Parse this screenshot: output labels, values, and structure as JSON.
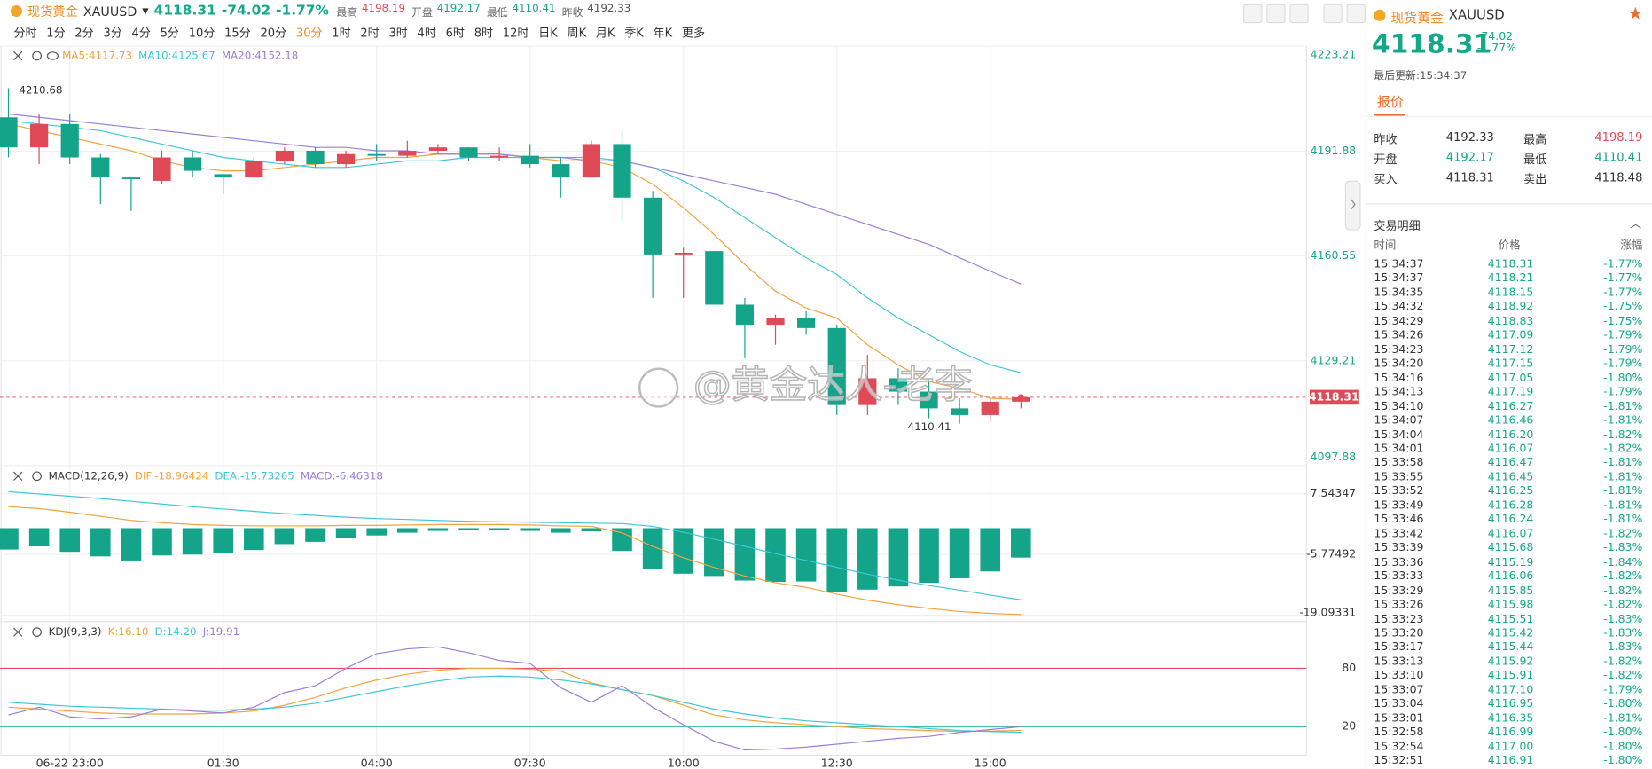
{
  "header": {
    "name": "现货黄金",
    "symbol": "XAUUSD",
    "price": "4118.31",
    "change": "-74.02",
    "change_pct": "-1.77%",
    "stats": [
      {
        "label": "最高",
        "value": "4198.19",
        "color": "#e04a57"
      },
      {
        "label": "开盘",
        "value": "4192.17",
        "color": "#13a88a"
      },
      {
        "label": "最低",
        "value": "4110.41",
        "color": "#13a88a"
      },
      {
        "label": "昨收",
        "value": "4192.33",
        "color": "#555555"
      }
    ]
  },
  "timeframes": {
    "items": [
      "分时",
      "1分",
      "2分",
      "3分",
      "4分",
      "5分",
      "10分",
      "15分",
      "20分",
      "30分",
      "1时",
      "2时",
      "3时",
      "4时",
      "6时",
      "8时",
      "12时",
      "日K",
      "周K",
      "月K",
      "季K",
      "年K",
      "更多"
    ],
    "active": 9
  },
  "watermark": "@黄金达人-老李",
  "chart_data": [
    {
      "type": "candlestick",
      "up_color": "#e04a57",
      "down_color": "#14a48a",
      "categories": [
        null,
        null,
        "06-22 23:00",
        null,
        null,
        null,
        null,
        "01:30",
        null,
        null,
        null,
        null,
        "04:00",
        null,
        null,
        null,
        null,
        "07:30",
        null,
        null,
        null,
        null,
        "10:00",
        null,
        null,
        null,
        null,
        "12:30",
        null,
        null,
        null,
        null,
        "15:00",
        null
      ],
      "open": [
        4202,
        4193,
        4200,
        4190,
        4184,
        4183,
        4190,
        4185,
        4184,
        4189,
        4192,
        4188,
        4191,
        4190.5,
        4192,
        4193,
        4190,
        4190.5,
        4188,
        4184,
        4194,
        4178,
        4161,
        4162,
        4146,
        4140,
        4142,
        4139,
        4116,
        4124,
        4120,
        4115,
        4113,
        4117
      ],
      "high": [
        4210.68,
        4203,
        4203,
        4191,
        4184,
        4192,
        4192,
        4185,
        4190,
        4193,
        4193,
        4192,
        4194,
        4195,
        4194,
        4193,
        4193,
        4194,
        4190,
        4195,
        4198.19,
        4180,
        4163,
        4162,
        4148,
        4143,
        4144,
        4140,
        4131,
        4127,
        4124,
        4118,
        4118,
        4119
      ],
      "low": [
        4190,
        4188,
        4188,
        4176,
        4174,
        4182,
        4184,
        4179,
        4184,
        4188,
        4187,
        4187,
        4189,
        4190,
        4191,
        4189,
        4189,
        4187,
        4178,
        4184,
        4171,
        4148,
        4148,
        4146,
        4130,
        4134,
        4137,
        4113,
        4113,
        4116,
        4112,
        4110.41,
        4111,
        4115
      ],
      "close": [
        4193,
        4200,
        4190,
        4184,
        4183.5,
        4190,
        4186,
        4184,
        4189,
        4192,
        4188,
        4191,
        4190.5,
        4192,
        4193,
        4190,
        4190.5,
        4188,
        4184,
        4194,
        4178,
        4161,
        4161.5,
        4146,
        4140,
        4142,
        4139,
        4116,
        4124,
        4120,
        4115,
        4113,
        4117,
        4118.31
      ],
      "series": [
        {
          "name": "MA5:4117.73",
          "color": "#f5a13f",
          "values": [
            4200,
            4198,
            4196,
            4194,
            4192,
            4189,
            4187,
            4186,
            4186,
            4187,
            4188,
            4189,
            4190,
            4190,
            4191,
            4191,
            4191,
            4190,
            4189,
            4189,
            4187,
            4182,
            4175,
            4167,
            4158,
            4150,
            4145,
            4142,
            4134,
            4128,
            4123,
            4121,
            4118,
            4117.73
          ]
        },
        {
          "name": "MA10:4125.67",
          "color": "#3ec6d8",
          "values": [
            4201,
            4200,
            4199,
            4198,
            4196,
            4194,
            4192,
            4190,
            4189,
            4188,
            4187,
            4187,
            4188,
            4189,
            4189,
            4190,
            4190,
            4190,
            4190,
            4190,
            4189,
            4187,
            4183,
            4178,
            4172,
            4166,
            4160,
            4155,
            4148,
            4142,
            4137,
            4132,
            4128,
            4125.67
          ]
        },
        {
          "name": "MA20:4152.18",
          "color": "#9b7fd8",
          "values": [
            4203,
            4202,
            4201,
            4200,
            4199,
            4198,
            4197,
            4196,
            4195,
            4194,
            4193,
            4193,
            4192,
            4192,
            4191,
            4191,
            4191,
            4190,
            4190,
            4189,
            4189,
            4187,
            4185,
            4183,
            4181,
            4179,
            4176,
            4173,
            4170,
            4167,
            4164,
            4160,
            4156,
            4152.18
          ]
        }
      ],
      "ylim": [
        4097.88,
        4223.21
      ],
      "yticks": [
        4223.21,
        4191.88,
        4160.55,
        4129.21,
        4097.88
      ],
      "max_label": 4210.68,
      "min_label": 4110.41,
      "last_price": 4118.31,
      "last_price_color": "#e04a57"
    },
    {
      "type": "macd",
      "title": "MACD(12,26,9)",
      "bar_color": "#14a48a",
      "series": [
        {
          "name": "DIF:-18.96424",
          "color": "#f5a13f",
          "values": [
            4.7,
            4.3,
            3.5,
            2.6,
            1.7,
            1.2,
            0.8,
            0.6,
            0.5,
            0.5,
            0.5,
            0.6,
            0.6,
            0.7,
            0.8,
            0.8,
            0.8,
            0.7,
            0.5,
            0.4,
            -1.0,
            -4.0,
            -6.5,
            -8.6,
            -10.5,
            -12.0,
            -13.0,
            -14.5,
            -15.8,
            -16.8,
            -17.6,
            -18.3,
            -18.7,
            -18.96424
          ]
        },
        {
          "name": "DEA:-15.73265",
          "color": "#3ec6d8",
          "values": [
            8.0,
            7.5,
            7.0,
            6.5,
            5.9,
            5.3,
            4.7,
            4.2,
            3.7,
            3.2,
            2.8,
            2.4,
            2.1,
            1.9,
            1.7,
            1.5,
            1.4,
            1.3,
            1.2,
            1.1,
            1.0,
            0.4,
            -0.9,
            -2.4,
            -4.0,
            -5.6,
            -7.1,
            -8.6,
            -10.1,
            -11.4,
            -12.6,
            -13.6,
            -14.7,
            -15.73265
          ]
        },
        {
          "name": "MACD:-6.46318",
          "color": "#9b7fd8",
          "bars": true,
          "values": [
            -4.7,
            -4.0,
            -5.2,
            -6.2,
            -7.1,
            -6.0,
            -5.8,
            -5.5,
            -4.8,
            -3.5,
            -3.0,
            -2.2,
            -1.6,
            -1.0,
            -0.6,
            -0.5,
            -0.4,
            -0.6,
            -1.0,
            -0.7,
            -5.0,
            -9.0,
            -10.0,
            -10.5,
            -11.5,
            -11.8,
            -11.7,
            -14.0,
            -13.5,
            -12.8,
            -12.0,
            -11.0,
            -9.5,
            -6.46318
          ]
        }
      ],
      "ylim": [
        -20.5,
        13.5
      ],
      "yticks": [
        7.54347,
        -5.77492,
        -19.09331
      ]
    },
    {
      "type": "kdj",
      "title": "KDJ(9,3,3)",
      "series": [
        {
          "name": "K:16.10",
          "color": "#f5a13f",
          "values": [
            40,
            38,
            36,
            34,
            33,
            33,
            33,
            34,
            36,
            42,
            50,
            60,
            68,
            74,
            78,
            80,
            80,
            79,
            77,
            65,
            58,
            52,
            42,
            32,
            27,
            24,
            22,
            20,
            18,
            17,
            16,
            15,
            15.5,
            16.1
          ]
        },
        {
          "name": "D:14.20",
          "color": "#3ec6d8",
          "values": [
            45,
            43,
            41,
            40,
            39,
            38,
            37,
            37,
            38,
            40,
            44,
            50,
            56,
            62,
            67,
            71,
            72,
            71,
            68,
            64,
            58,
            52,
            45,
            38,
            33,
            29,
            26,
            24,
            22,
            20,
            18,
            16,
            15,
            14.2
          ]
        },
        {
          "name": "J:19.91",
          "color": "#9b7fd8",
          "values": [
            32,
            40,
            30,
            28,
            30,
            38,
            36,
            34,
            40,
            55,
            62,
            80,
            95,
            100,
            102,
            96,
            88,
            85,
            60,
            45,
            62,
            40,
            22,
            5,
            -4,
            -3,
            -1,
            2,
            5,
            8,
            10,
            14,
            17,
            19.91
          ]
        }
      ],
      "ylim": [
        -9.5,
        127
      ],
      "yticks": [
        80,
        20
      ],
      "tick_line_colors": [
        "#e84a5f",
        "#2bb89a"
      ]
    }
  ],
  "sidebar": {
    "name": "现货黄金",
    "symbol": "XAUUSD",
    "price": "4118.31",
    "change": "-74.02",
    "change_pct": "-1.77%",
    "updated": "最后更新:15:34:37",
    "tab": "报价",
    "quotes": [
      [
        "昨收",
        "4192.33",
        "最高",
        "4198.19"
      ],
      [
        "开盘",
        "4192.17",
        "最低",
        "4110.41"
      ],
      [
        "买入",
        "4118.31",
        "卖出",
        "4118.48"
      ]
    ],
    "trades_title": "交易明细",
    "trades_header": [
      "时间",
      "价格",
      "涨幅"
    ],
    "trades": [
      [
        "15:34:37",
        "4118.31",
        "-1.77%"
      ],
      [
        "15:34:37",
        "4118.21",
        "-1.77%"
      ],
      [
        "15:34:35",
        "4118.15",
        "-1.77%"
      ],
      [
        "15:34:32",
        "4118.92",
        "-1.75%"
      ],
      [
        "15:34:29",
        "4118.83",
        "-1.75%"
      ],
      [
        "15:34:26",
        "4117.09",
        "-1.79%"
      ],
      [
        "15:34:23",
        "4117.12",
        "-1.79%"
      ],
      [
        "15:34:20",
        "4117.15",
        "-1.79%"
      ],
      [
        "15:34:16",
        "4117.05",
        "-1.80%"
      ],
      [
        "15:34:13",
        "4117.19",
        "-1.79%"
      ],
      [
        "15:34:10",
        "4116.27",
        "-1.81%"
      ],
      [
        "15:34:07",
        "4116.46",
        "-1.81%"
      ],
      [
        "15:34:04",
        "4116.20",
        "-1.82%"
      ],
      [
        "15:34:01",
        "4116.07",
        "-1.82%"
      ],
      [
        "15:33:58",
        "4116.47",
        "-1.81%"
      ],
      [
        "15:33:55",
        "4116.45",
        "-1.81%"
      ],
      [
        "15:33:52",
        "4116.25",
        "-1.81%"
      ],
      [
        "15:33:49",
        "4116.28",
        "-1.81%"
      ],
      [
        "15:33:46",
        "4116.24",
        "-1.81%"
      ],
      [
        "15:33:42",
        "4116.07",
        "-1.82%"
      ],
      [
        "15:33:39",
        "4115.68",
        "-1.83%"
      ],
      [
        "15:33:36",
        "4115.19",
        "-1.84%"
      ],
      [
        "15:33:33",
        "4116.06",
        "-1.82%"
      ],
      [
        "15:33:29",
        "4115.85",
        "-1.82%"
      ],
      [
        "15:33:26",
        "4115.98",
        "-1.82%"
      ],
      [
        "15:33:23",
        "4115.51",
        "-1.83%"
      ],
      [
        "15:33:20",
        "4115.42",
        "-1.83%"
      ],
      [
        "15:33:17",
        "4115.44",
        "-1.83%"
      ],
      [
        "15:33:13",
        "4115.92",
        "-1.82%"
      ],
      [
        "15:33:10",
        "4115.91",
        "-1.82%"
      ],
      [
        "15:33:07",
        "4117.10",
        "-1.79%"
      ],
      [
        "15:33:04",
        "4116.95",
        "-1.80%"
      ],
      [
        "15:33:01",
        "4116.35",
        "-1.81%"
      ],
      [
        "15:32:58",
        "4116.99",
        "-1.80%"
      ],
      [
        "15:32:54",
        "4117.00",
        "-1.80%"
      ],
      [
        "15:32:51",
        "4116.91",
        "-1.80%"
      ]
    ]
  }
}
